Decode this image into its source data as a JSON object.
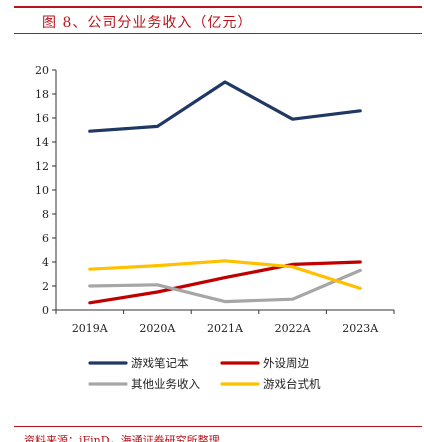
{
  "figure": {
    "title": "图 8、公司分业务收入（亿元）",
    "source": "资料来源：iFinD，海通证券研究所整理"
  },
  "chart_data": {
    "type": "line",
    "categories": [
      "2019A",
      "2020A",
      "2021A",
      "2022A",
      "2023A"
    ],
    "ylim": [
      0,
      20
    ],
    "yticks": [
      0,
      2,
      4,
      6,
      8,
      10,
      12,
      14,
      16,
      18,
      20
    ],
    "grid": false,
    "legend_position": "bottom",
    "series": [
      {
        "name": "游戏笔记本",
        "color": "#1f3864",
        "values": [
          14.9,
          15.3,
          19.0,
          15.9,
          16.6
        ]
      },
      {
        "name": "外设周边",
        "color": "#c00000",
        "values": [
          0.6,
          1.5,
          2.7,
          3.8,
          4.0
        ]
      },
      {
        "name": "其他业务收入",
        "color": "#a6a6a6",
        "values": [
          2.0,
          2.1,
          0.7,
          0.9,
          3.3
        ]
      },
      {
        "name": "游戏台式机",
        "color": "#ffc000",
        "values": [
          3.4,
          3.7,
          4.1,
          3.6,
          1.8
        ]
      }
    ]
  }
}
